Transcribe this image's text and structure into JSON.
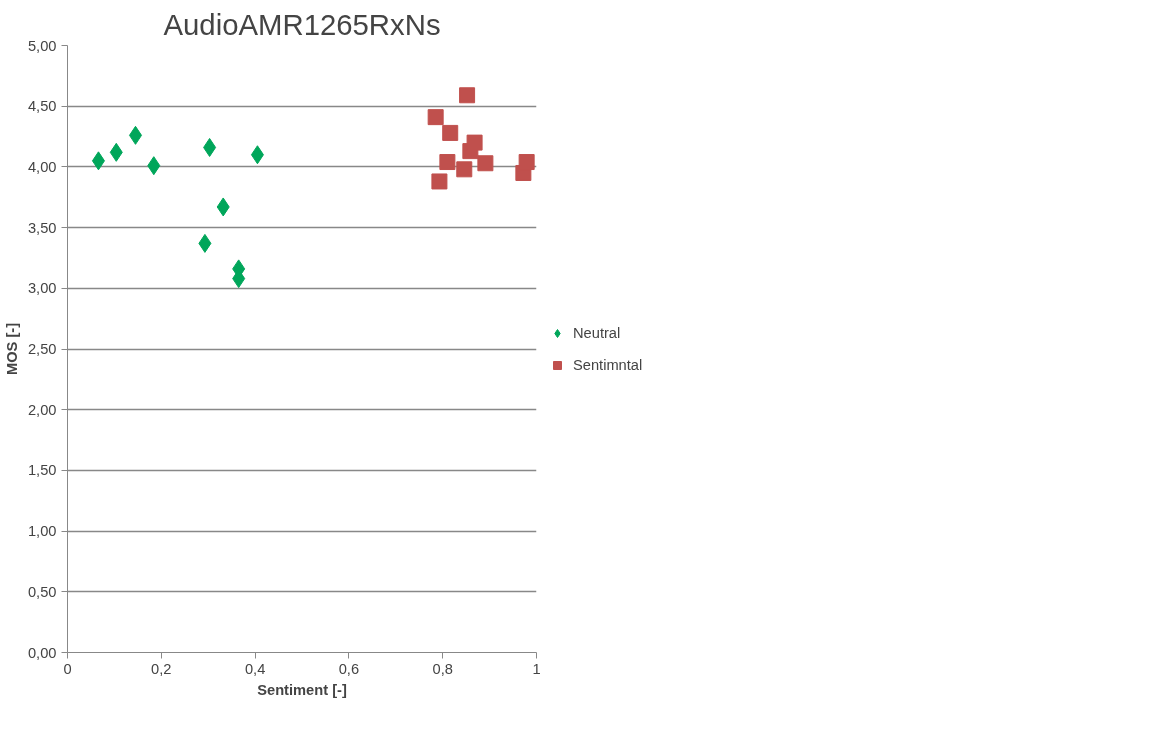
{
  "chart_data": {
    "type": "scatter",
    "title": "AudioAMR1265RxNs",
    "xlabel": "Sentiment [-]",
    "ylabel": "MOS [-]",
    "xlim": [
      0,
      1
    ],
    "xticks": [
      0,
      {
        "value": 0.2,
        "label": "0,2"
      },
      {
        "value": 0.4,
        "label": "0,4"
      },
      {
        "value": 0.6,
        "label": "0,6"
      },
      {
        "value": 0.8,
        "label": "0,8"
      },
      1
    ],
    "ylim": [
      0,
      5
    ],
    "yticks": [
      {
        "value": 0,
        "label": "0,00"
      },
      {
        "value": 0.5,
        "label": "0,50"
      },
      {
        "value": 1,
        "label": "1,00"
      },
      {
        "value": 1.5,
        "label": "1,50"
      },
      {
        "value": 2,
        "label": "2,00"
      },
      {
        "value": 2.5,
        "label": "2,50"
      },
      {
        "value": 3,
        "label": "3,00"
      },
      {
        "value": 3.5,
        "label": "3,50"
      },
      {
        "value": 4,
        "label": "4,00"
      },
      {
        "value": 4.5,
        "label": "4,50"
      },
      {
        "value": 5,
        "label": "5,00"
      }
    ],
    "grid": "y",
    "legend": "right",
    "series": [
      {
        "name": "Neutral",
        "color": "#00a65a",
        "marker": "diamond",
        "x": [
          0.066,
          0.104,
          0.145,
          0.184,
          0.293,
          0.303,
          0.332,
          0.365,
          0.365,
          0.405
        ],
        "values": [
          4.05,
          4.12,
          4.26,
          4.01,
          3.37,
          4.16,
          3.67,
          3.16,
          3.08,
          4.1
        ]
      },
      {
        "name": "Sentimntal",
        "color": "#c0504d",
        "marker": "square",
        "x": [
          0.785,
          0.852,
          0.816,
          0.81,
          0.793,
          0.846,
          0.859,
          0.868,
          0.891,
          0.972,
          0.979
        ],
        "values": [
          4.41,
          4.59,
          4.28,
          4.04,
          3.88,
          3.98,
          4.13,
          4.2,
          4.03,
          3.95,
          4.04
        ]
      }
    ]
  }
}
